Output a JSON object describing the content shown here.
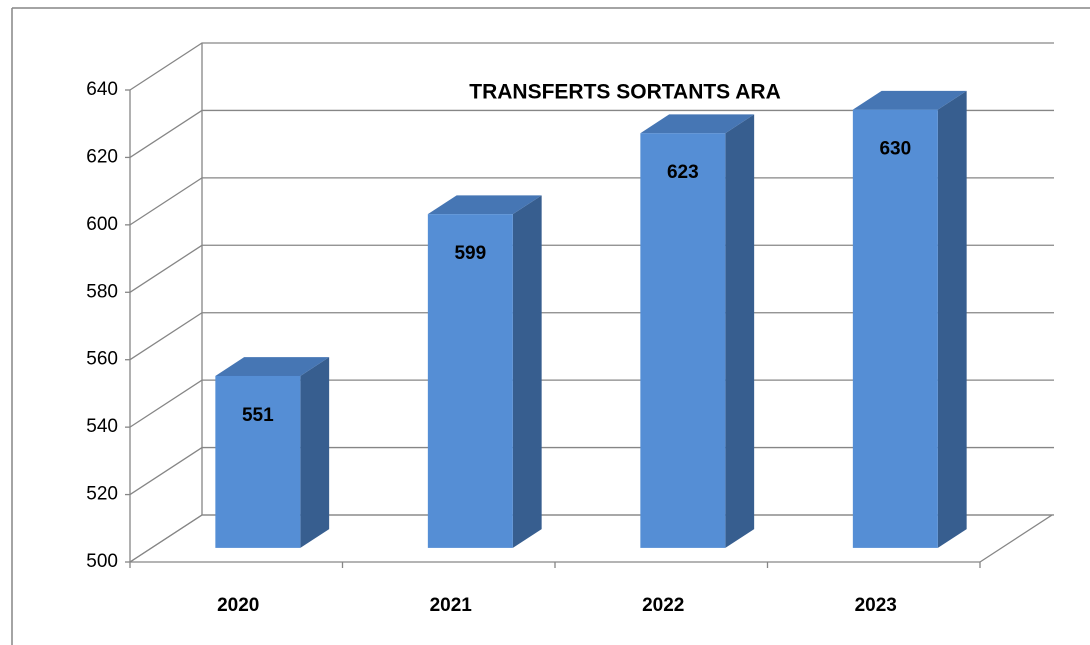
{
  "chart_data": {
    "type": "bar3d",
    "title": "TRANSFERTS SORTANTS ARA",
    "categories": [
      "2020",
      "2021",
      "2022",
      "2023"
    ],
    "values": [
      551,
      599,
      623,
      630
    ],
    "color": "#558ed5",
    "ylim": [
      500,
      640
    ],
    "yticks": [
      500,
      520,
      540,
      560,
      580,
      600,
      620,
      640
    ],
    "grid": true
  }
}
